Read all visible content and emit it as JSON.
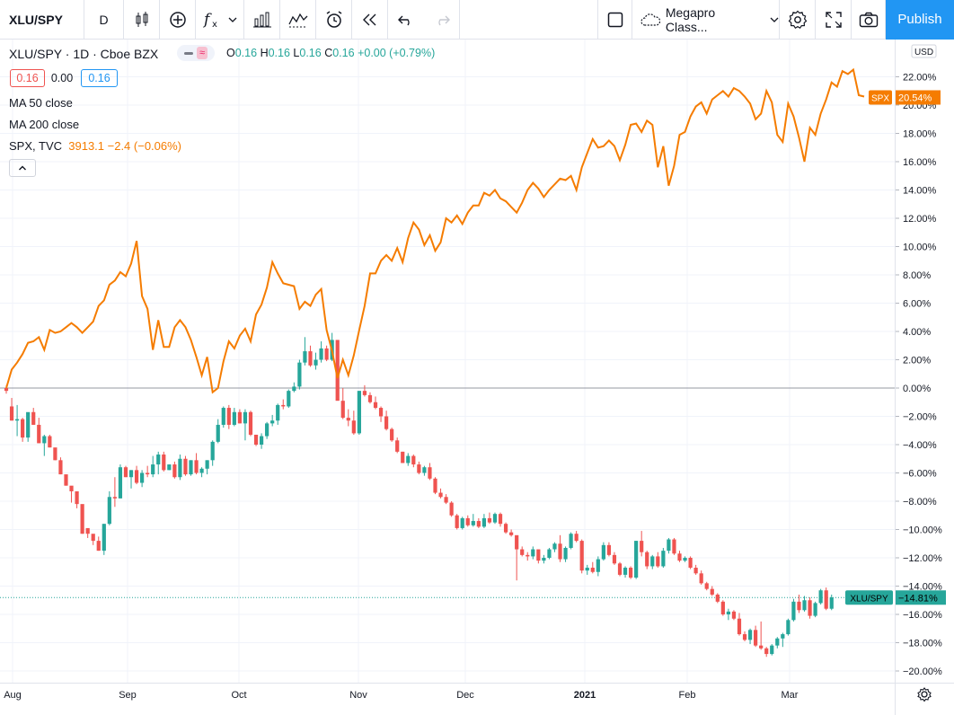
{
  "toolbar": {
    "symbol": "XLU/SPY",
    "interval": "D",
    "template": "Megapro Class...",
    "publish_label": "Publish"
  },
  "legend": {
    "title": "XLU/SPY · 1D · Cboe BZX",
    "ohlc": {
      "o_label": "O",
      "o": "0.16",
      "h_label": "H",
      "h": "0.16",
      "l_label": "L",
      "l": "0.16",
      "c_label": "C",
      "c": "0.16",
      "change": "+0.00 (+0.79%)"
    },
    "bid": "0.16",
    "spread": "0.00",
    "ask": "0.16",
    "studies": [
      "MA 50 close",
      "MA 200 close"
    ],
    "compare": {
      "name": "SPX, TVC",
      "value": "3913.1 −2.4 (−0.06%)"
    }
  },
  "price_axis": {
    "currency": "USD",
    "ticks": [
      "22.00%",
      "20.00%",
      "18.00%",
      "16.00%",
      "14.00%",
      "12.00%",
      "10.00%",
      "8.00%",
      "6.00%",
      "4.00%",
      "2.00%",
      "0.00%",
      "−2.00%",
      "−4.00%",
      "−6.00%",
      "−8.00%",
      "−10.00%",
      "−12.00%",
      "−14.00%",
      "−16.00%",
      "−18.00%",
      "−20.00%"
    ],
    "spx_tag_name": "SPX",
    "spx_tag_value": "20.54%",
    "xlu_tag_name": "XLU/SPY",
    "xlu_tag_value": "−14.81%"
  },
  "time_axis": [
    "Aug",
    "Sep",
    "Oct",
    "Nov",
    "Dec",
    "2021",
    "Feb",
    "Mar"
  ],
  "colors": {
    "spx": "#f57c00",
    "up": "#26a69a",
    "down": "#ef5350",
    "accent": "#2196f3"
  },
  "chart_data": {
    "type": "line",
    "y_unit": "%",
    "ylim": [
      -21,
      23.5
    ],
    "series": [
      {
        "name": "SPX",
        "kind": "line",
        "values": [
          0.0,
          1.3,
          1.8,
          2.4,
          3.2,
          3.3,
          3.6,
          2.7,
          4.1,
          3.9,
          4.0,
          4.3,
          4.6,
          4.3,
          3.9,
          4.3,
          4.7,
          5.8,
          6.2,
          7.3,
          7.6,
          8.2,
          7.9,
          8.8,
          10.4,
          6.5,
          5.6,
          2.7,
          4.8,
          2.9,
          2.9,
          4.3,
          4.8,
          4.3,
          3.4,
          2.2,
          0.9,
          2.2,
          -0.3,
          0.0,
          1.9,
          3.3,
          2.8,
          3.7,
          4.2,
          3.3,
          5.2,
          5.9,
          7.1,
          8.9,
          8.1,
          7.4,
          7.3,
          7.2,
          5.6,
          6.1,
          5.8,
          6.6,
          7.0,
          4.1,
          2.6,
          0.7,
          2.0,
          0.9,
          2.3,
          4.1,
          5.8,
          8.1,
          8.1,
          9.0,
          9.4,
          9.0,
          9.9,
          8.9,
          10.6,
          11.7,
          11.2,
          10.1,
          10.8,
          9.7,
          10.3,
          12.0,
          11.7,
          12.2,
          11.6,
          12.4,
          12.9,
          12.9,
          13.8,
          13.6,
          14.0,
          13.4,
          13.2,
          12.8,
          12.4,
          13.1,
          14.0,
          14.5,
          14.1,
          13.5,
          14.0,
          14.4,
          14.8,
          14.7,
          15.0,
          14.0,
          15.6,
          16.6,
          17.6,
          17.0,
          17.1,
          17.5,
          17.1,
          16.1,
          17.2,
          18.6,
          18.7,
          18.1,
          18.9,
          18.6,
          15.6,
          17.1,
          14.3,
          15.7,
          17.9,
          18.1,
          19.2,
          19.9,
          20.2,
          19.4,
          20.4,
          20.7,
          21.0,
          20.6,
          21.2,
          21.0,
          20.6,
          20.1,
          19.0,
          19.4,
          21.0,
          20.2,
          17.9,
          17.4,
          20.1,
          19.2,
          17.7,
          16.0,
          18.4,
          17.9,
          19.4,
          20.4,
          21.6,
          21.3,
          22.4,
          22.2,
          22.5,
          20.7,
          20.6
        ],
        "last": 20.54
      },
      {
        "name": "XLU/SPY",
        "kind": "candlestick",
        "ohlc": [
          [
            0.0,
            0.2,
            -0.4,
            -0.2
          ],
          [
            -1.3,
            -0.7,
            -2.3,
            -2.3
          ],
          [
            -2.3,
            -1.2,
            -3.4,
            -2.2
          ],
          [
            -2.2,
            -2.1,
            -3.8,
            -3.5
          ],
          [
            -3.5,
            -2.0,
            -3.8,
            -1.7
          ],
          [
            -1.7,
            -1.4,
            -2.6,
            -2.6
          ],
          [
            -2.6,
            -2.1,
            -3.9,
            -3.9
          ],
          [
            -3.9,
            -3.3,
            -4.8,
            -3.4
          ],
          [
            -3.4,
            -3.3,
            -4.2,
            -4.2
          ],
          [
            -4.2,
            -4.3,
            -5.1,
            -5.1
          ],
          [
            -5.1,
            -4.9,
            -6.1,
            -6.1
          ],
          [
            -6.1,
            -6.4,
            -6.9,
            -6.9
          ],
          [
            -6.9,
            -7.0,
            -8.1,
            -7.3
          ],
          [
            -7.3,
            -7.4,
            -8.5,
            -8.2
          ],
          [
            -8.2,
            -8.3,
            -10.3,
            -10.3
          ],
          [
            -9.9,
            -10.0,
            -10.6,
            -10.3
          ],
          [
            -10.3,
            -10.6,
            -11.1,
            -10.8
          ],
          [
            -10.8,
            -10.5,
            -11.5,
            -11.5
          ],
          [
            -11.5,
            -9.6,
            -11.8,
            -9.6
          ],
          [
            -9.6,
            -7.3,
            -9.7,
            -7.7
          ],
          [
            -7.7,
            -6.3,
            -8.4,
            -7.8
          ],
          [
            -7.8,
            -5.4,
            -7.8,
            -5.6
          ],
          [
            -5.6,
            -5.5,
            -6.3,
            -6.3
          ],
          [
            -6.3,
            -5.8,
            -7.1,
            -5.8
          ],
          [
            -5.8,
            -5.5,
            -6.8,
            -6.7
          ],
          [
            -6.7,
            -5.8,
            -7.0,
            -6.0
          ],
          [
            -6.0,
            -5.5,
            -6.3,
            -6.1
          ],
          [
            -6.1,
            -4.8,
            -6.3,
            -5.4
          ],
          [
            -5.4,
            -4.5,
            -6.1,
            -4.7
          ],
          [
            -4.7,
            -4.5,
            -5.9,
            -5.8
          ],
          [
            -5.8,
            -5.4,
            -5.8,
            -5.4
          ],
          [
            -5.4,
            -5.2,
            -6.4,
            -6.3
          ],
          [
            -6.3,
            -4.7,
            -6.5,
            -5.0
          ],
          [
            -5.0,
            -4.8,
            -6.2,
            -6.1
          ],
          [
            -6.1,
            -5.1,
            -6.2,
            -5.1
          ],
          [
            -5.1,
            -4.6,
            -6.1,
            -6.0
          ],
          [
            -6.0,
            -5.6,
            -6.3,
            -5.7
          ],
          [
            -5.7,
            -5.1,
            -6.1,
            -5.1
          ],
          [
            -5.1,
            -3.7,
            -5.5,
            -3.8
          ],
          [
            -3.8,
            -2.2,
            -3.9,
            -2.6
          ],
          [
            -2.6,
            -1.3,
            -2.8,
            -1.4
          ],
          [
            -1.4,
            -1.2,
            -2.9,
            -2.6
          ],
          [
            -2.6,
            -1.4,
            -2.7,
            -1.7
          ],
          [
            -1.7,
            -1.5,
            -2.5,
            -2.5
          ],
          [
            -2.5,
            -1.5,
            -3.7,
            -1.7
          ],
          [
            -1.7,
            -1.6,
            -3.4,
            -3.3
          ],
          [
            -3.3,
            -3.3,
            -4.1,
            -4.0
          ],
          [
            -4.0,
            -3.2,
            -4.3,
            -3.4
          ],
          [
            -3.4,
            -2.4,
            -3.6,
            -2.5
          ],
          [
            -2.5,
            -1.9,
            -2.7,
            -2.3
          ],
          [
            -2.3,
            -1.1,
            -2.6,
            -1.2
          ],
          [
            -1.2,
            -0.8,
            -1.5,
            -1.3
          ],
          [
            -1.3,
            -0.1,
            -1.4,
            -0.2
          ],
          [
            -0.2,
            0.4,
            -0.3,
            0.1
          ],
          [
            0.1,
            2.0,
            -0.1,
            1.8
          ],
          [
            1.8,
            3.6,
            1.6,
            2.6
          ],
          [
            2.6,
            3.0,
            1.5,
            1.6
          ],
          [
            1.6,
            2.5,
            1.3,
            2.0
          ],
          [
            2.0,
            3.3,
            1.8,
            2.8
          ],
          [
            2.8,
            3.0,
            1.9,
            2.0
          ],
          [
            2.0,
            3.9,
            1.9,
            3.4
          ],
          [
            3.4,
            3.3,
            -0.6,
            -0.9
          ],
          [
            -0.9,
            0.0,
            -2.2,
            -2.1
          ],
          [
            -2.1,
            -1.5,
            -2.7,
            -2.3
          ],
          [
            -2.3,
            -1.6,
            -3.3,
            -3.2
          ],
          [
            -3.2,
            -0.2,
            -3.3,
            -0.2
          ],
          [
            -0.2,
            0.2,
            -0.6,
            -0.5
          ],
          [
            -0.5,
            -0.3,
            -1.1,
            -1.0
          ],
          [
            -1.0,
            -0.6,
            -1.5,
            -1.4
          ],
          [
            -1.4,
            -1.3,
            -2.4,
            -2.0
          ],
          [
            -2.0,
            -1.6,
            -3.0,
            -2.9
          ],
          [
            -2.9,
            -2.8,
            -3.8,
            -3.7
          ],
          [
            -3.7,
            -3.5,
            -4.6,
            -4.5
          ],
          [
            -4.5,
            -4.5,
            -5.3,
            -5.3
          ],
          [
            -5.3,
            -4.6,
            -5.5,
            -4.8
          ],
          [
            -4.8,
            -4.7,
            -5.6,
            -5.4
          ],
          [
            -5.4,
            -5.2,
            -6.1,
            -6.0
          ],
          [
            -6.0,
            -5.5,
            -6.2,
            -5.6
          ],
          [
            -5.6,
            -5.3,
            -6.5,
            -6.4
          ],
          [
            -6.4,
            -6.3,
            -7.5,
            -7.4
          ],
          [
            -7.4,
            -7.1,
            -7.8,
            -7.7
          ],
          [
            -7.7,
            -7.5,
            -8.2,
            -8.1
          ],
          [
            -8.1,
            -8.0,
            -9.1,
            -9.0
          ],
          [
            -9.0,
            -8.9,
            -10.0,
            -9.9
          ],
          [
            -9.9,
            -9.1,
            -10.0,
            -9.2
          ],
          [
            -9.2,
            -9.0,
            -9.8,
            -9.7
          ],
          [
            -9.7,
            -8.9,
            -9.8,
            -9.4
          ],
          [
            -9.4,
            -9.2,
            -9.9,
            -9.8
          ],
          [
            -9.8,
            -8.9,
            -9.9,
            -9.2
          ],
          [
            -9.2,
            -8.8,
            -9.6,
            -9.5
          ],
          [
            -9.5,
            -8.8,
            -9.6,
            -8.9
          ],
          [
            -8.9,
            -8.8,
            -9.8,
            -9.6
          ],
          [
            -9.6,
            -9.5,
            -10.3,
            -10.2
          ],
          [
            -10.2,
            -10.0,
            -10.5,
            -10.4
          ],
          [
            -10.4,
            -10.5,
            -13.6,
            -11.4
          ],
          [
            -11.4,
            -11.2,
            -11.9,
            -11.8
          ],
          [
            -11.8,
            -11.6,
            -12.2,
            -11.9
          ],
          [
            -11.9,
            -11.2,
            -12.1,
            -11.4
          ],
          [
            -11.4,
            -11.5,
            -12.4,
            -12.2
          ],
          [
            -12.2,
            -11.8,
            -12.4,
            -12.0
          ],
          [
            -12.0,
            -11.3,
            -12.1,
            -11.4
          ],
          [
            -11.4,
            -10.9,
            -11.6,
            -11.0
          ],
          [
            -11.0,
            -10.4,
            -12.3,
            -12.1
          ],
          [
            -12.1,
            -11.2,
            -12.3,
            -11.3
          ],
          [
            -11.3,
            -10.2,
            -11.4,
            -10.3
          ],
          [
            -10.3,
            -10.1,
            -10.9,
            -10.8
          ],
          [
            -10.8,
            -10.7,
            -13.1,
            -12.9
          ],
          [
            -12.9,
            -12.5,
            -13.2,
            -12.7
          ],
          [
            -12.7,
            -12.3,
            -13.1,
            -13.0
          ],
          [
            -13.0,
            -11.9,
            -13.3,
            -12.1
          ],
          [
            -12.1,
            -10.9,
            -12.2,
            -11.1
          ],
          [
            -11.1,
            -10.9,
            -11.9,
            -11.8
          ],
          [
            -11.8,
            -11.6,
            -12.5,
            -12.4
          ],
          [
            -12.4,
            -12.3,
            -13.3,
            -13.2
          ],
          [
            -13.2,
            -12.6,
            -13.4,
            -12.7
          ],
          [
            -12.7,
            -12.6,
            -13.5,
            -13.4
          ],
          [
            -13.4,
            -10.8,
            -13.5,
            -10.8
          ],
          [
            -10.8,
            -10.1,
            -11.9,
            -11.6
          ],
          [
            -11.6,
            -11.5,
            -12.8,
            -12.6
          ],
          [
            -12.6,
            -11.8,
            -12.8,
            -11.9
          ],
          [
            -11.9,
            -11.6,
            -12.7,
            -12.6
          ],
          [
            -12.6,
            -11.3,
            -12.7,
            -11.5
          ],
          [
            -11.5,
            -10.6,
            -11.7,
            -10.7
          ],
          [
            -10.7,
            -10.6,
            -11.8,
            -11.7
          ],
          [
            -11.7,
            -11.5,
            -12.3,
            -12.2
          ],
          [
            -12.2,
            -11.9,
            -12.3,
            -12.0
          ],
          [
            -12.0,
            -11.9,
            -12.8,
            -12.7
          ],
          [
            -12.7,
            -12.5,
            -13.2,
            -13.1
          ],
          [
            -13.1,
            -12.9,
            -13.9,
            -13.8
          ],
          [
            -13.8,
            -13.7,
            -14.3,
            -14.2
          ],
          [
            -14.2,
            -14.0,
            -14.7,
            -14.6
          ],
          [
            -14.6,
            -14.5,
            -15.2,
            -15.1
          ],
          [
            -15.1,
            -15.0,
            -16.1,
            -16.0
          ],
          [
            -16.0,
            -15.6,
            -16.4,
            -15.8
          ],
          [
            -15.8,
            -15.7,
            -16.4,
            -16.3
          ],
          [
            -16.3,
            -15.9,
            -17.5,
            -17.4
          ],
          [
            -17.4,
            -17.2,
            -17.9,
            -17.8
          ],
          [
            -17.8,
            -17.0,
            -18.1,
            -17.1
          ],
          [
            -17.1,
            -16.8,
            -18.3,
            -18.2
          ],
          [
            -18.2,
            -16.5,
            -18.5,
            -18.4
          ],
          [
            -18.4,
            -18.3,
            -19.0,
            -18.8
          ],
          [
            -18.8,
            -18.1,
            -18.9,
            -18.2
          ],
          [
            -18.2,
            -17.6,
            -18.4,
            -17.7
          ],
          [
            -17.7,
            -17.3,
            -18.3,
            -17.4
          ],
          [
            -17.4,
            -16.3,
            -17.5,
            -16.4
          ],
          [
            -16.4,
            -14.9,
            -16.5,
            -15.1
          ],
          [
            -15.1,
            -14.6,
            -15.9,
            -15.7
          ],
          [
            -15.7,
            -14.7,
            -15.8,
            -15.0
          ],
          [
            -15.0,
            -14.8,
            -16.3,
            -16.1
          ],
          [
            -16.1,
            -15.1,
            -16.2,
            -15.2
          ],
          [
            -15.2,
            -14.2,
            -15.3,
            -14.3
          ],
          [
            -14.3,
            -14.1,
            -15.7,
            -15.6
          ],
          [
            -15.6,
            -14.6,
            -15.7,
            -14.8
          ]
        ],
        "last": -14.81
      }
    ]
  }
}
